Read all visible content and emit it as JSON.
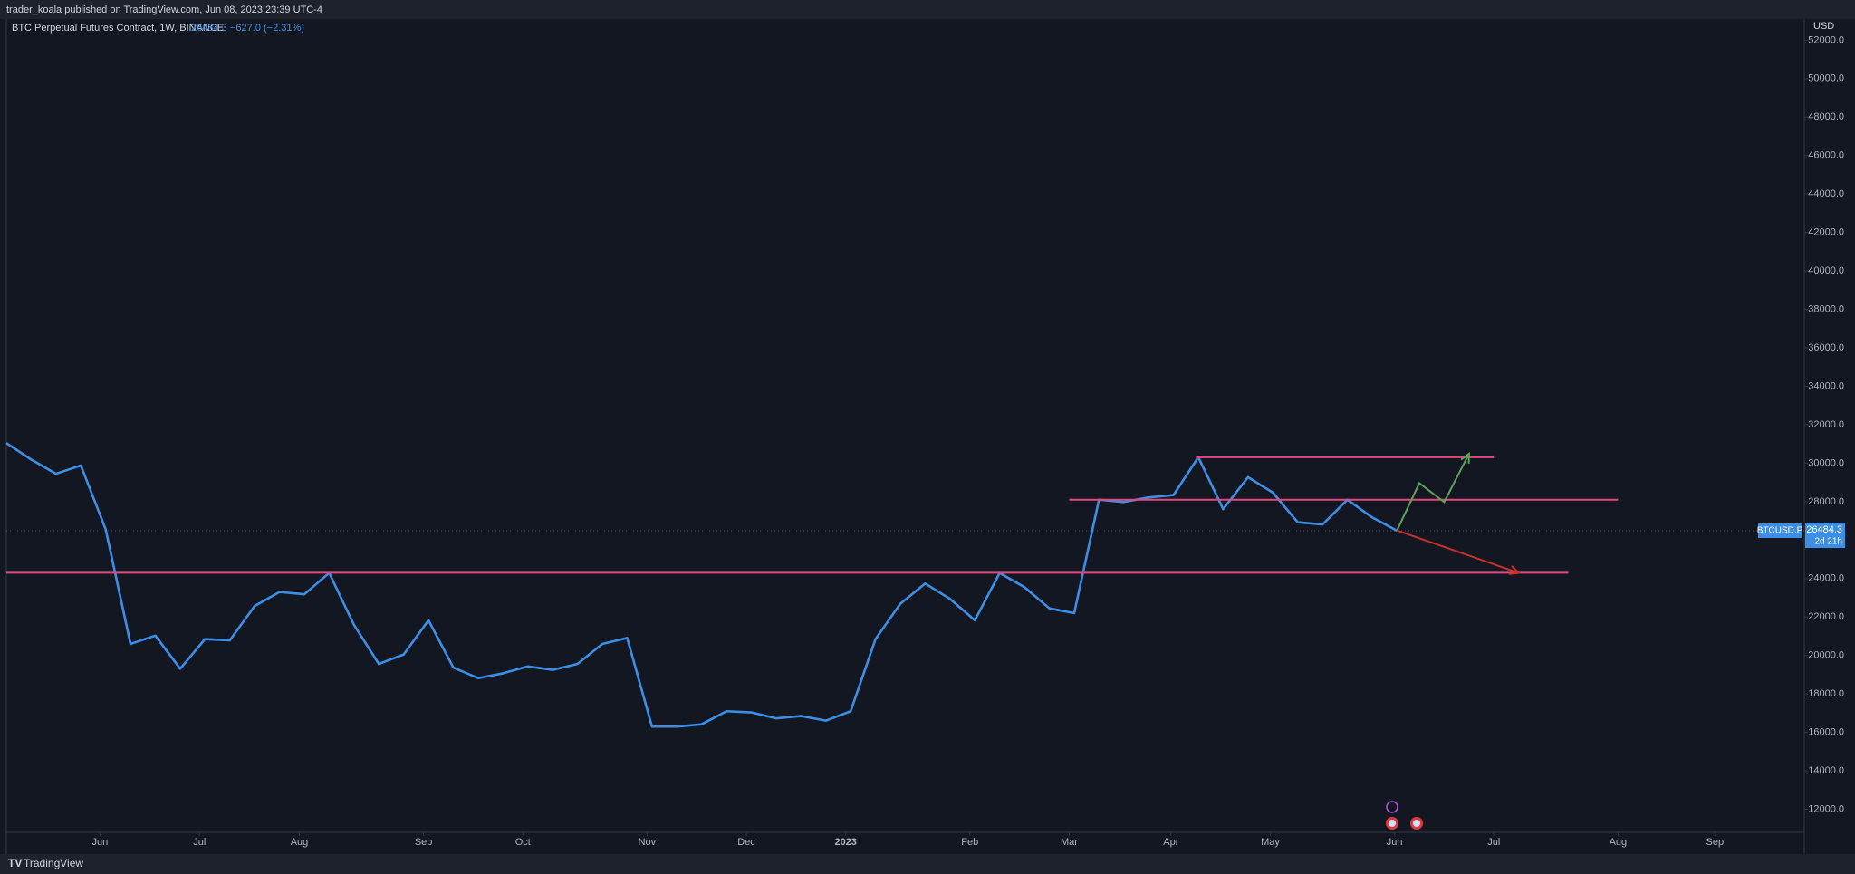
{
  "header": {
    "text": "trader_koala published on TradingView.com, Jun 08, 2023 23:39 UTC-4"
  },
  "footer": {
    "brand": "TradingView"
  },
  "chart_data": {
    "type": "line",
    "title": "BTC Perpetual Futures Contract, 1W, BINANCE",
    "change": "−627.0 (−2.31%)",
    "y_axis_label": "USD",
    "symbol": "BTCUSD.P",
    "countdown": "2d 21h",
    "x": [
      0,
      1,
      2,
      3,
      4,
      5,
      6,
      7,
      8,
      9,
      10,
      11,
      12,
      13,
      14,
      15,
      16,
      17,
      18,
      19,
      20,
      21,
      22,
      23,
      24,
      25,
      26,
      27,
      28,
      29,
      30,
      31,
      32,
      33,
      34,
      35,
      36,
      37,
      38,
      39,
      40,
      41,
      42,
      43,
      44,
      45,
      46,
      47,
      48,
      49,
      50,
      51,
      52,
      53,
      54,
      55,
      56
    ],
    "series": [
      {
        "name": "BTCUSD.P",
        "color": "#3d8fe6",
        "values": [
          31048,
          30190,
          29450,
          29880,
          26560,
          20600,
          21030,
          19310,
          20850,
          20790,
          22570,
          23300,
          23180,
          24290,
          21590,
          19560,
          20050,
          21830,
          19370,
          18820,
          19070,
          19430,
          19250,
          19560,
          20600,
          20910,
          16300,
          16300,
          16420,
          17100,
          17040,
          16730,
          16850,
          16610,
          17100,
          20850,
          22690,
          23740,
          22940,
          21830,
          24290,
          23550,
          22450,
          22200,
          28100,
          27980,
          28220,
          28340,
          30310,
          27610,
          29270,
          28470,
          26930,
          26810,
          28100,
          27180,
          26484.3
        ]
      }
    ],
    "xlim": [
      0,
      72.4
    ],
    "xticks": [
      {
        "value": 3.77,
        "label": "Jun"
      },
      {
        "value": 7.78,
        "label": "Jul"
      },
      {
        "value": 11.8,
        "label": "Aug"
      },
      {
        "value": 16.8,
        "label": "Sep"
      },
      {
        "value": 20.8,
        "label": "Oct"
      },
      {
        "value": 25.8,
        "label": "Nov"
      },
      {
        "value": 29.8,
        "label": "Dec"
      },
      {
        "value": 33.8,
        "label": "2023"
      },
      {
        "value": 38.8,
        "label": "Feb"
      },
      {
        "value": 42.8,
        "label": "Mar"
      },
      {
        "value": 46.9,
        "label": "Apr"
      },
      {
        "value": 50.9,
        "label": "May"
      },
      {
        "value": 55.9,
        "label": "Jun"
      },
      {
        "value": 59.9,
        "label": "Jul"
      },
      {
        "value": 64.9,
        "label": "Aug"
      },
      {
        "value": 68.8,
        "label": "Sep"
      }
    ],
    "ylim": [
      10800,
      53100
    ],
    "yticks": [
      {
        "value": 12000,
        "label": "12000.0"
      },
      {
        "value": 14000,
        "label": "14000.0"
      },
      {
        "value": 16000,
        "label": "16000.0"
      },
      {
        "value": 18000,
        "label": "18000.0"
      },
      {
        "value": 20000,
        "label": "20000.0"
      },
      {
        "value": 22000,
        "label": "22000.0"
      },
      {
        "value": 24000,
        "label": "24000.0"
      },
      {
        "value": 26000,
        "label": "26000.0"
      },
      {
        "value": 28000,
        "label": "28000.0"
      },
      {
        "value": 30000,
        "label": "30000.0"
      },
      {
        "value": 32000,
        "label": "32000.0"
      },
      {
        "value": 34000,
        "label": "34000.0"
      },
      {
        "value": 36000,
        "label": "36000.0"
      },
      {
        "value": 38000,
        "label": "38000.0"
      },
      {
        "value": 40000,
        "label": "40000.0"
      },
      {
        "value": 42000,
        "label": "42000.0"
      },
      {
        "value": 44000,
        "label": "44000.0"
      },
      {
        "value": 46000,
        "label": "46000.0"
      },
      {
        "value": 48000,
        "label": "48000.0"
      },
      {
        "value": 50000,
        "label": "50000.0"
      },
      {
        "value": 52000,
        "label": "52000.0"
      }
    ],
    "grid": false,
    "drawings": [
      {
        "color": "#e8457c",
        "x": [
          0,
          62.9
        ],
        "y": [
          24300,
          24300
        ]
      },
      {
        "color": "#e8457c",
        "x": [
          42.8,
          64.9
        ],
        "y": [
          28100,
          28100
        ]
      },
      {
        "color": "#e8457c",
        "x": [
          47.9,
          59.9
        ],
        "y": [
          30310,
          30310
        ]
      },
      {
        "color": "#5fa35a",
        "x": [
          56,
          56.9,
          57.9,
          58.9
        ],
        "y": [
          26500,
          28960,
          27975,
          30495
        ]
      },
      {
        "color": "#c9302c",
        "x": [
          56,
          60.9
        ],
        "y": [
          26500,
          24290
        ]
      }
    ]
  }
}
